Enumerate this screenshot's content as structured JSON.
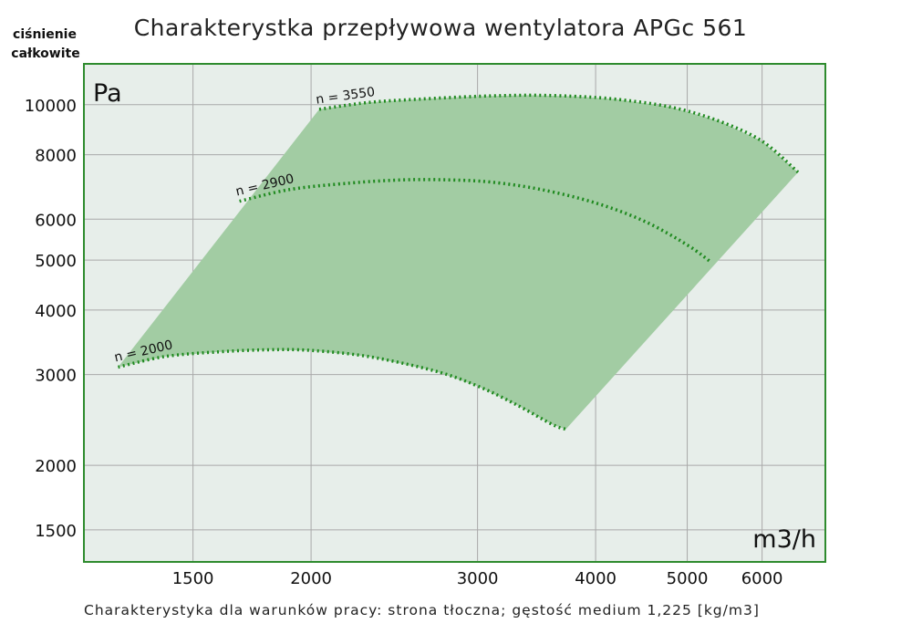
{
  "chart_data": {
    "type": "line",
    "title": "Charakterystka przepływowa wentylatora APGc 561",
    "ylabel": [
      "ciśnienie",
      "całkowite"
    ],
    "y_unit": "Pa",
    "x_unit": "m3/h",
    "x_scale": "log",
    "y_scale": "log",
    "xlim": [
      1150,
      7000
    ],
    "ylim": [
      1300,
      12000
    ],
    "x_ticks": [
      1500,
      2000,
      3000,
      4000,
      5000,
      6000
    ],
    "y_ticks": [
      1500,
      2000,
      3000,
      4000,
      5000,
      6000,
      8000,
      10000
    ],
    "grid": true,
    "series": [
      {
        "name": "n = 2000",
        "x": [
          1250,
          1400,
          1600,
          1800,
          2000,
          2300,
          2700,
          3000,
          3300,
          3600,
          3720
        ],
        "y": [
          3100,
          3250,
          3320,
          3350,
          3340,
          3250,
          3050,
          2850,
          2620,
          2400,
          2350
        ]
      },
      {
        "name": "n = 2900",
        "x": [
          1680,
          1900,
          2200,
          2500,
          2800,
          3100,
          3500,
          4000,
          4500,
          5000,
          5300
        ],
        "y": [
          6500,
          6850,
          7050,
          7150,
          7150,
          7080,
          6850,
          6450,
          5950,
          5350,
          4950
        ]
      },
      {
        "name": "n = 3550",
        "x": [
          2040,
          2300,
          2600,
          3000,
          3400,
          3800,
          4200,
          4800,
          5400,
          6000,
          6550
        ],
        "y": [
          9800,
          10100,
          10250,
          10380,
          10430,
          10380,
          10250,
          9900,
          9300,
          8500,
          7400
        ]
      }
    ],
    "area_color": "#a2cca3",
    "curve_color": "#1f8a1f",
    "plot_background": "#e7eeea",
    "frame_color": "#2e8b2e"
  },
  "footnote": "Charakterystyka dla warunków pracy: strona tłoczna; gęstość medium 1,225 [kg/m3]"
}
